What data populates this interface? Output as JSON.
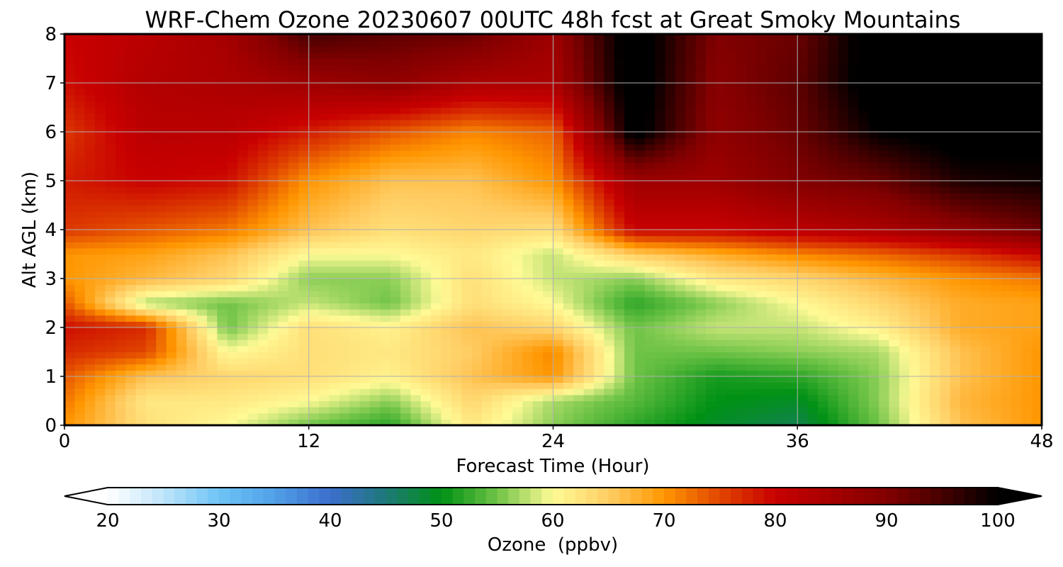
{
  "chart_data": {
    "type": "heatmap",
    "title": "WRF-Chem Ozone  20230607 00UTC 48h fcst at Great Smoky Mountains",
    "xlabel": "Forecast Time (Hour)",
    "ylabel": "Alt AGL (km)",
    "xlim": [
      0,
      48
    ],
    "ylim": [
      0,
      8
    ],
    "x_ticks": [
      "0",
      "12",
      "24",
      "36",
      "48"
    ],
    "y_ticks": [
      "0",
      "1",
      "2",
      "3",
      "4",
      "5",
      "6",
      "7",
      "8"
    ],
    "grid": true,
    "colorbar": {
      "label": "Ozone  (ppbv)",
      "orientation": "horizontal",
      "placement": "bottom",
      "range": [
        20,
        100
      ],
      "step": 1,
      "extend": "both",
      "ticks": [
        "20",
        "30",
        "40",
        "50",
        "60",
        "70",
        "80",
        "90",
        "100"
      ]
    },
    "x": [
      0,
      4,
      8,
      12,
      16,
      20,
      24,
      28,
      32,
      36,
      40,
      44,
      48
    ],
    "y": [
      0,
      0.5,
      1,
      1.5,
      2,
      2.5,
      3,
      3.5,
      4,
      5,
      6,
      7,
      8
    ],
    "z": [
      [
        70,
        63,
        60,
        55,
        52,
        62,
        56,
        52,
        49,
        47,
        55,
        66,
        70
      ],
      [
        72,
        62,
        62,
        60,
        56,
        64,
        57,
        54,
        50,
        49,
        56,
        67,
        70
      ],
      [
        74,
        66,
        64,
        63,
        61,
        66,
        70,
        55,
        51,
        52,
        56,
        66,
        70
      ],
      [
        77,
        75,
        60,
        63,
        62,
        65,
        71,
        55,
        55,
        56,
        57,
        66,
        70
      ],
      [
        79,
        77,
        55,
        63,
        61,
        66,
        64,
        55,
        58,
        58,
        61,
        68,
        69
      ],
      [
        74,
        57,
        55,
        58,
        55,
        63,
        60,
        52,
        56,
        60,
        64,
        68,
        69
      ],
      [
        70,
        67,
        64,
        56,
        56,
        63,
        58,
        56,
        62,
        64,
        67,
        70,
        72
      ],
      [
        70,
        69,
        66,
        60,
        60,
        62,
        58,
        65,
        68,
        71,
        73,
        76,
        80
      ],
      [
        76,
        74,
        72,
        66,
        63,
        64,
        63,
        80,
        80,
        82,
        84,
        88,
        92
      ],
      [
        78,
        80,
        79,
        70,
        66,
        66,
        70,
        86,
        86,
        90,
        92,
        98,
        99
      ],
      [
        76,
        82,
        82,
        78,
        74,
        71,
        73,
        102,
        88,
        92,
        100,
        102,
        101
      ],
      [
        79,
        83,
        84,
        86,
        88,
        84,
        84,
        103,
        89,
        93,
        103,
        103,
        103
      ],
      [
        80,
        82,
        85,
        95,
        93,
        92,
        86,
        103,
        90,
        92,
        103,
        103,
        103
      ]
    ]
  }
}
